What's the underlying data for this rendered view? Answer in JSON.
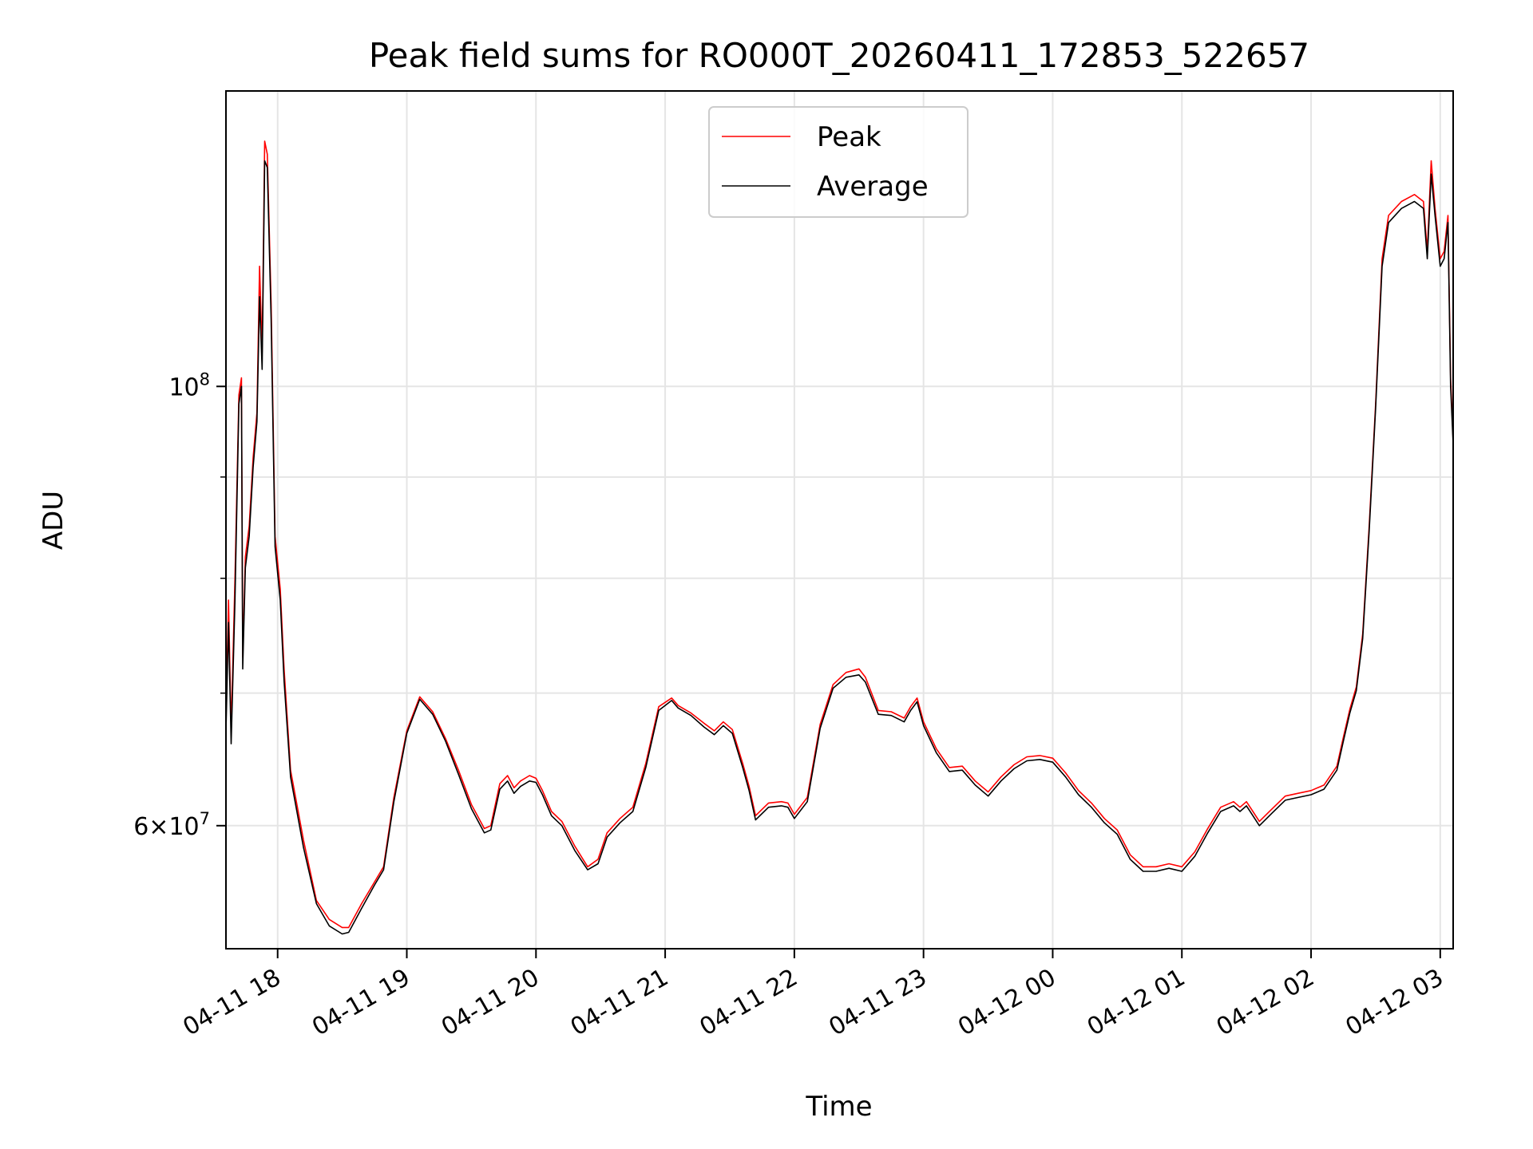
{
  "chart_data": {
    "type": "line",
    "title": "Peak field sums for RO000T_20260411_172853_522657",
    "xlabel": "Time",
    "ylabel": "ADU",
    "yscale": "log",
    "x_tick_labels": [
      "04-11 18",
      "04-11 19",
      "04-11 20",
      "04-11 21",
      "04-11 22",
      "04-11 23",
      "04-12 00",
      "04-12 01",
      "04-12 02",
      "04-12 03"
    ],
    "x_ticks_hours": [
      18,
      19,
      20,
      21,
      22,
      23,
      24,
      25,
      26,
      27
    ],
    "y_major_ticks": [
      {
        "value": 60000000,
        "base": "6×10",
        "exp": "7"
      },
      {
        "value": 100000000,
        "base": "10",
        "exp": "8"
      }
    ],
    "y_minor_gridlines": [
      60000000,
      70000000,
      80000000,
      90000000,
      100000000
    ],
    "xlim_hours": [
      17.6,
      27.1
    ],
    "ylim": [
      52000000,
      141000000
    ],
    "grid": true,
    "legend_position": "top-center",
    "x_time_base": "2026-04-11 00:00",
    "x_unit": "hours",
    "series": [
      {
        "name": "Peak",
        "color": "#ff0000",
        "points": [
          [
            17.6,
            68000000
          ],
          [
            17.62,
            78000000
          ],
          [
            17.64,
            67000000
          ],
          [
            17.67,
            80000000
          ],
          [
            17.7,
            99000000
          ],
          [
            17.72,
            101000000
          ],
          [
            17.73,
            73000000
          ],
          [
            17.75,
            82000000
          ],
          [
            17.78,
            85000000
          ],
          [
            17.81,
            92000000
          ],
          [
            17.84,
            97000000
          ],
          [
            17.86,
            115000000
          ],
          [
            17.88,
            104000000
          ],
          [
            17.9,
            133000000
          ],
          [
            17.92,
            131000000
          ],
          [
            17.95,
            110000000
          ],
          [
            17.98,
            84000000
          ],
          [
            18.02,
            79000000
          ],
          [
            18.05,
            72000000
          ],
          [
            18.1,
            64000000
          ],
          [
            18.2,
            59000000
          ],
          [
            18.3,
            55000000
          ],
          [
            18.4,
            53800000
          ],
          [
            18.5,
            53300000
          ],
          [
            18.55,
            53300000
          ],
          [
            18.65,
            54800000
          ],
          [
            18.75,
            56200000
          ],
          [
            18.82,
            57200000
          ],
          [
            18.9,
            62000000
          ],
          [
            19.0,
            67000000
          ],
          [
            19.1,
            69700000
          ],
          [
            19.2,
            68500000
          ],
          [
            19.3,
            66400000
          ],
          [
            19.4,
            64000000
          ],
          [
            19.5,
            61500000
          ],
          [
            19.6,
            59800000
          ],
          [
            19.65,
            60000000
          ],
          [
            19.72,
            63000000
          ],
          [
            19.78,
            63600000
          ],
          [
            19.83,
            62700000
          ],
          [
            19.88,
            63200000
          ],
          [
            19.95,
            63600000
          ],
          [
            20.0,
            63400000
          ],
          [
            20.05,
            62500000
          ],
          [
            20.12,
            61000000
          ],
          [
            20.2,
            60300000
          ],
          [
            20.3,
            58600000
          ],
          [
            20.4,
            57200000
          ],
          [
            20.48,
            57700000
          ],
          [
            20.55,
            59500000
          ],
          [
            20.65,
            60500000
          ],
          [
            20.75,
            61300000
          ],
          [
            20.85,
            64500000
          ],
          [
            20.95,
            68900000
          ],
          [
            21.05,
            69600000
          ],
          [
            21.1,
            69000000
          ],
          [
            21.2,
            68400000
          ],
          [
            21.3,
            67600000
          ],
          [
            21.38,
            67000000
          ],
          [
            21.45,
            67700000
          ],
          [
            21.52,
            67100000
          ],
          [
            21.6,
            64500000
          ],
          [
            21.65,
            62800000
          ],
          [
            21.7,
            60700000
          ],
          [
            21.8,
            61600000
          ],
          [
            21.9,
            61700000
          ],
          [
            21.95,
            61600000
          ],
          [
            22.0,
            60800000
          ],
          [
            22.1,
            62000000
          ],
          [
            22.2,
            67500000
          ],
          [
            22.3,
            70700000
          ],
          [
            22.4,
            71700000
          ],
          [
            22.5,
            72000000
          ],
          [
            22.55,
            71300000
          ],
          [
            22.65,
            68600000
          ],
          [
            22.75,
            68500000
          ],
          [
            22.85,
            68000000
          ],
          [
            22.9,
            68900000
          ],
          [
            22.95,
            69600000
          ],
          [
            23.0,
            67700000
          ],
          [
            23.1,
            65600000
          ],
          [
            23.2,
            64200000
          ],
          [
            23.3,
            64300000
          ],
          [
            23.4,
            63200000
          ],
          [
            23.5,
            62400000
          ],
          [
            23.6,
            63500000
          ],
          [
            23.7,
            64400000
          ],
          [
            23.8,
            65000000
          ],
          [
            23.9,
            65100000
          ],
          [
            24.0,
            64900000
          ],
          [
            24.1,
            63800000
          ],
          [
            24.2,
            62500000
          ],
          [
            24.3,
            61600000
          ],
          [
            24.4,
            60500000
          ],
          [
            24.5,
            59700000
          ],
          [
            24.6,
            58000000
          ],
          [
            24.7,
            57200000
          ],
          [
            24.8,
            57200000
          ],
          [
            24.9,
            57400000
          ],
          [
            25.0,
            57200000
          ],
          [
            25.1,
            58200000
          ],
          [
            25.2,
            59800000
          ],
          [
            25.3,
            61300000
          ],
          [
            25.4,
            61700000
          ],
          [
            25.45,
            61300000
          ],
          [
            25.5,
            61700000
          ],
          [
            25.55,
            61000000
          ],
          [
            25.6,
            60300000
          ],
          [
            25.7,
            61200000
          ],
          [
            25.8,
            62100000
          ],
          [
            25.9,
            62300000
          ],
          [
            26.0,
            62500000
          ],
          [
            26.1,
            62900000
          ],
          [
            26.2,
            64300000
          ],
          [
            26.25,
            66500000
          ],
          [
            26.3,
            68700000
          ],
          [
            26.35,
            70500000
          ],
          [
            26.4,
            75000000
          ],
          [
            26.45,
            85000000
          ],
          [
            26.5,
            98000000
          ],
          [
            26.55,
            116000000
          ],
          [
            26.6,
            122000000
          ],
          [
            26.7,
            124000000
          ],
          [
            26.8,
            125000000
          ],
          [
            26.87,
            124000000
          ],
          [
            26.9,
            117000000
          ],
          [
            26.93,
            130000000
          ],
          [
            26.96,
            123000000
          ],
          [
            27.0,
            116000000
          ],
          [
            27.03,
            117000000
          ],
          [
            27.06,
            122000000
          ],
          [
            27.08,
            101000000
          ],
          [
            27.1,
            94000000
          ]
        ]
      },
      {
        "name": "Average",
        "color": "#000000",
        "points": [
          [
            17.6,
            67000000
          ],
          [
            17.62,
            76000000
          ],
          [
            17.64,
            66000000
          ],
          [
            17.67,
            78000000
          ],
          [
            17.7,
            98000000
          ],
          [
            17.72,
            100000000
          ],
          [
            17.73,
            72000000
          ],
          [
            17.75,
            81000000
          ],
          [
            17.78,
            84000000
          ],
          [
            17.81,
            91000000
          ],
          [
            17.84,
            96000000
          ],
          [
            17.86,
            111000000
          ],
          [
            17.88,
            102000000
          ],
          [
            17.9,
            130000000
          ],
          [
            17.92,
            129000000
          ],
          [
            17.95,
            108000000
          ],
          [
            17.98,
            83000000
          ],
          [
            18.02,
            78000000
          ],
          [
            18.05,
            71000000
          ],
          [
            18.1,
            63500000
          ],
          [
            18.2,
            58500000
          ],
          [
            18.3,
            54800000
          ],
          [
            18.4,
            53400000
          ],
          [
            18.5,
            52900000
          ],
          [
            18.55,
            53000000
          ],
          [
            18.65,
            54500000
          ],
          [
            18.75,
            56000000
          ],
          [
            18.82,
            57000000
          ],
          [
            18.9,
            61700000
          ],
          [
            19.0,
            66800000
          ],
          [
            19.1,
            69500000
          ],
          [
            19.2,
            68300000
          ],
          [
            19.3,
            66200000
          ],
          [
            19.4,
            63700000
          ],
          [
            19.5,
            61200000
          ],
          [
            19.6,
            59500000
          ],
          [
            19.65,
            59700000
          ],
          [
            19.72,
            62600000
          ],
          [
            19.78,
            63200000
          ],
          [
            19.83,
            62300000
          ],
          [
            19.88,
            62800000
          ],
          [
            19.95,
            63200000
          ],
          [
            20.0,
            63100000
          ],
          [
            20.05,
            62200000
          ],
          [
            20.12,
            60700000
          ],
          [
            20.2,
            60000000
          ],
          [
            20.3,
            58300000
          ],
          [
            20.4,
            57000000
          ],
          [
            20.48,
            57400000
          ],
          [
            20.55,
            59200000
          ],
          [
            20.65,
            60200000
          ],
          [
            20.75,
            61000000
          ],
          [
            20.85,
            64200000
          ],
          [
            20.95,
            68600000
          ],
          [
            21.05,
            69400000
          ],
          [
            21.1,
            68800000
          ],
          [
            21.2,
            68200000
          ],
          [
            21.3,
            67300000
          ],
          [
            21.38,
            66700000
          ],
          [
            21.45,
            67400000
          ],
          [
            21.52,
            66800000
          ],
          [
            21.6,
            64200000
          ],
          [
            21.65,
            62500000
          ],
          [
            21.7,
            60400000
          ],
          [
            21.8,
            61300000
          ],
          [
            21.9,
            61400000
          ],
          [
            21.95,
            61300000
          ],
          [
            22.0,
            60500000
          ],
          [
            22.1,
            61700000
          ],
          [
            22.2,
            67200000
          ],
          [
            22.3,
            70400000
          ],
          [
            22.4,
            71300000
          ],
          [
            22.5,
            71500000
          ],
          [
            22.55,
            70900000
          ],
          [
            22.65,
            68300000
          ],
          [
            22.75,
            68200000
          ],
          [
            22.85,
            67700000
          ],
          [
            22.9,
            68600000
          ],
          [
            22.95,
            69300000
          ],
          [
            23.0,
            67400000
          ],
          [
            23.1,
            65300000
          ],
          [
            23.2,
            63900000
          ],
          [
            23.3,
            64000000
          ],
          [
            23.4,
            62900000
          ],
          [
            23.5,
            62100000
          ],
          [
            23.6,
            63200000
          ],
          [
            23.7,
            64100000
          ],
          [
            23.8,
            64700000
          ],
          [
            23.9,
            64800000
          ],
          [
            24.0,
            64600000
          ],
          [
            24.1,
            63500000
          ],
          [
            24.2,
            62200000
          ],
          [
            24.3,
            61300000
          ],
          [
            24.4,
            60200000
          ],
          [
            24.5,
            59400000
          ],
          [
            24.6,
            57700000
          ],
          [
            24.7,
            56900000
          ],
          [
            24.8,
            56900000
          ],
          [
            24.9,
            57100000
          ],
          [
            25.0,
            56900000
          ],
          [
            25.1,
            57900000
          ],
          [
            25.2,
            59500000
          ],
          [
            25.3,
            61000000
          ],
          [
            25.4,
            61400000
          ],
          [
            25.45,
            61000000
          ],
          [
            25.5,
            61400000
          ],
          [
            25.55,
            60700000
          ],
          [
            25.6,
            60000000
          ],
          [
            25.7,
            60900000
          ],
          [
            25.8,
            61800000
          ],
          [
            25.9,
            62000000
          ],
          [
            26.0,
            62200000
          ],
          [
            26.1,
            62600000
          ],
          [
            26.2,
            64000000
          ],
          [
            26.25,
            66200000
          ],
          [
            26.3,
            68400000
          ],
          [
            26.35,
            70200000
          ],
          [
            26.4,
            74600000
          ],
          [
            26.45,
            84500000
          ],
          [
            26.5,
            97500000
          ],
          [
            26.55,
            115000000
          ],
          [
            26.6,
            121000000
          ],
          [
            26.7,
            123000000
          ],
          [
            26.8,
            124000000
          ],
          [
            26.87,
            123000000
          ],
          [
            26.9,
            116000000
          ],
          [
            26.93,
            128000000
          ],
          [
            26.96,
            122000000
          ],
          [
            27.0,
            115000000
          ],
          [
            27.03,
            116000000
          ],
          [
            27.06,
            121000000
          ],
          [
            27.08,
            100000000
          ],
          [
            27.1,
            93500000
          ]
        ]
      }
    ]
  }
}
